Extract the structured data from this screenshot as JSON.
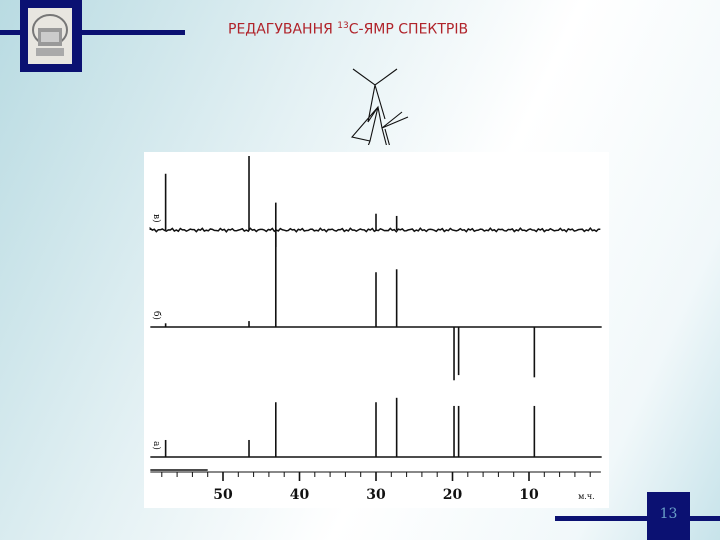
{
  "slide": {
    "title_prefix": "РЕДАГУВАННЯ ",
    "title_sup": "13",
    "title_suffix": "С-ЯМР СПЕКТРІВ",
    "page_number": "13",
    "accent_color": "#0b1172",
    "title_color": "#b0232a"
  },
  "molecule": {
    "oxygen_label": "o"
  },
  "spectrum": {
    "x_axis_label": "м.ч.",
    "x_ticks": [
      "50",
      "40",
      "30",
      "20",
      "10"
    ],
    "x_tick_values": [
      50,
      40,
      30,
      20,
      10
    ],
    "x_range": [
      59.5,
      0.5
    ],
    "panels": [
      {
        "label": "в)",
        "peaks": [
          [
            57.5,
            0.76
          ],
          [
            46.6,
            1.0
          ],
          [
            43.1,
            -0.23
          ],
          [
            30.0,
            0.22
          ],
          [
            27.3,
            0.19
          ]
        ],
        "noisy": true
      },
      {
        "label": "б)",
        "peaks": [
          [
            57.5,
            0.05
          ],
          [
            46.6,
            0.08
          ],
          [
            43.1,
            1.68
          ],
          [
            30.0,
            0.74
          ],
          [
            27.3,
            0.78
          ],
          [
            19.8,
            -0.72
          ],
          [
            19.2,
            -0.65
          ],
          [
            9.3,
            -0.68
          ]
        ],
        "noisy": false
      },
      {
        "label": "а)",
        "peaks": [
          [
            57.5,
            0.23
          ],
          [
            46.6,
            0.23
          ],
          [
            43.1,
            0.74
          ],
          [
            30.0,
            0.74
          ],
          [
            27.3,
            0.8
          ],
          [
            19.8,
            0.69
          ],
          [
            19.2,
            0.69
          ],
          [
            9.3,
            0.69
          ]
        ],
        "noisy": false
      }
    ]
  }
}
